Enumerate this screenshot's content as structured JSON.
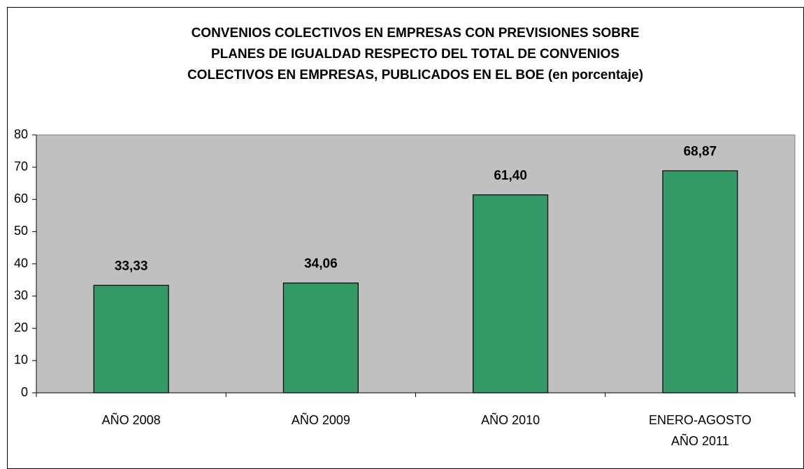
{
  "chart_data": {
    "type": "bar",
    "title": [
      "CONVENIOS COLECTIVOS EN EMPRESAS CON PREVISIONES SOBRE",
      "PLANES DE IGUALDAD RESPECTO DEL TOTAL DE CONVENIOS",
      "COLECTIVOS EN EMPRESAS, PUBLICADOS EN EL BOE (en porcentaje)"
    ],
    "categories": [
      "AÑO 2008",
      "AÑO 2009",
      "AÑO 2010",
      "ENERO-AGOSTO AÑO 2011"
    ],
    "values": [
      33.33,
      34.06,
      61.4,
      68.87
    ],
    "value_labels": [
      "33,33",
      "34,06",
      "61,40",
      "68,87"
    ],
    "color": "#339966",
    "ylim": [
      0,
      80
    ],
    "yticks": [
      0,
      10,
      20,
      30,
      40,
      50,
      60,
      70,
      80
    ]
  }
}
